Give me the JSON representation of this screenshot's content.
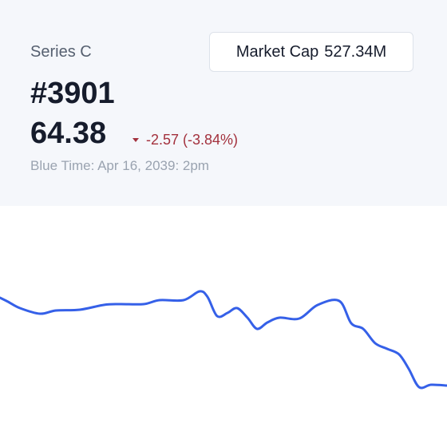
{
  "header": {
    "series": "Series C",
    "id": "#3901",
    "price": "64.38",
    "change": "-2.57 (-3.84%)",
    "market_cap_label": "Market Cap",
    "market_cap_value": "527.34M",
    "time": "Blue Time: Apr 16, 2039: 2pm"
  },
  "chart_data": {
    "type": "line",
    "color": "#3560e8",
    "x": [
      0,
      10,
      25,
      50,
      70,
      100,
      130,
      150,
      180,
      200,
      230,
      250,
      260,
      272,
      285,
      297,
      310,
      322,
      335,
      350,
      375,
      398,
      425,
      440,
      455,
      470,
      485,
      500,
      512,
      525,
      540,
      560
    ],
    "values": [
      69.6,
      69.35,
      68.95,
      68.6,
      68.8,
      68.85,
      69.15,
      69.2,
      69.2,
      69.45,
      69.45,
      70,
      69.65,
      68.45,
      68.65,
      68.95,
      68.35,
      67.65,
      68.05,
      68.35,
      68.3,
      69.15,
      69.4,
      68,
      67.65,
      66.75,
      66.4,
      66.05,
      65.15,
      64,
      64.15,
      64.1
    ],
    "xlim": [
      0,
      560
    ],
    "ylim": [
      60.25,
      75.25
    ]
  }
}
